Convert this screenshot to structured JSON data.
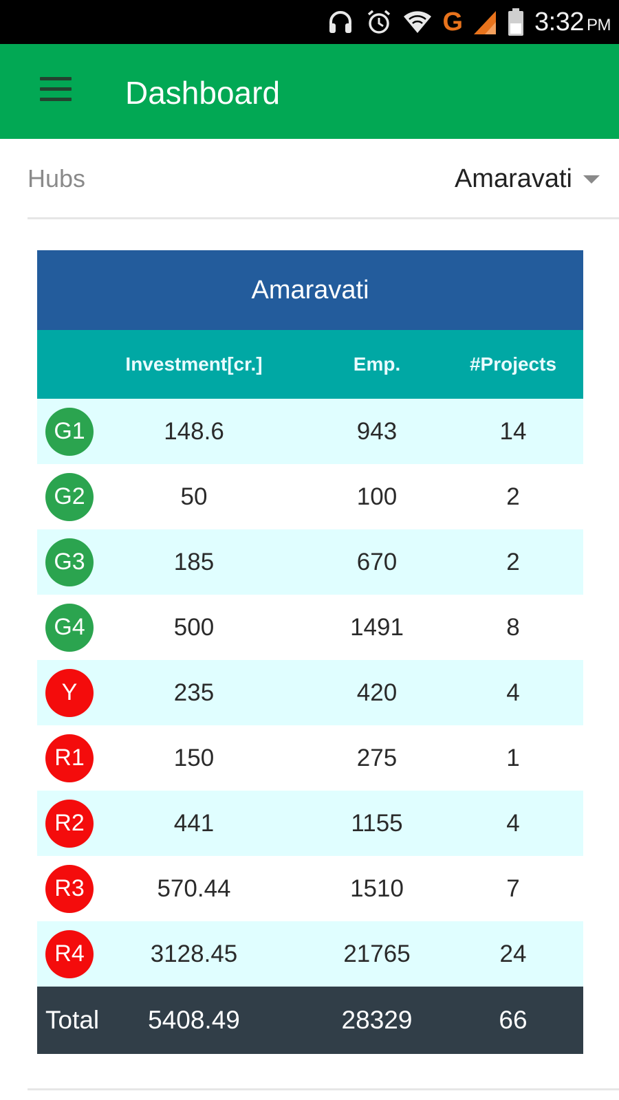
{
  "status_bar": {
    "icons": [
      "headset-icon",
      "alarm-icon",
      "wifi-icon",
      "network-g-icon",
      "signal-icon",
      "battery-icon"
    ],
    "network_type": "G",
    "time": "3:32",
    "ampm": "PM"
  },
  "app_bar": {
    "title": "Dashboard",
    "menu_icon": "hamburger-menu-icon",
    "color": "#02a854"
  },
  "hubs": {
    "label": "Hubs",
    "selected": "Amaravati"
  },
  "table": {
    "title": "Amaravati",
    "columns": [
      "Investment[cr.]",
      "Emp.",
      "#Projects"
    ],
    "rows": [
      {
        "badge": "G1",
        "status": "green",
        "investment": "148.6",
        "emp": "943",
        "projects": "14"
      },
      {
        "badge": "G2",
        "status": "green",
        "investment": "50",
        "emp": "100",
        "projects": "2"
      },
      {
        "badge": "G3",
        "status": "green",
        "investment": "185",
        "emp": "670",
        "projects": "2"
      },
      {
        "badge": "G4",
        "status": "green",
        "investment": "500",
        "emp": "1491",
        "projects": "8"
      },
      {
        "badge": "Y",
        "status": "red",
        "investment": "235",
        "emp": "420",
        "projects": "4"
      },
      {
        "badge": "R1",
        "status": "red",
        "investment": "150",
        "emp": "275",
        "projects": "1"
      },
      {
        "badge": "R2",
        "status": "red",
        "investment": "441",
        "emp": "1155",
        "projects": "4"
      },
      {
        "badge": "R3",
        "status": "red",
        "investment": "570.44",
        "emp": "1510",
        "projects": "7"
      },
      {
        "badge": "R4",
        "status": "red",
        "investment": "3128.45",
        "emp": "21765",
        "projects": "24"
      }
    ],
    "total": {
      "label": "Total",
      "investment": "5408.49",
      "emp": "28329",
      "projects": "66"
    },
    "colors": {
      "title_bg": "#235c9c",
      "header_bg": "#00a8a4",
      "alt_row_bg": "#e0feff",
      "total_bg": "#313e48",
      "green_badge": "#2ba44f",
      "red_badge": "#f40c0c"
    }
  }
}
